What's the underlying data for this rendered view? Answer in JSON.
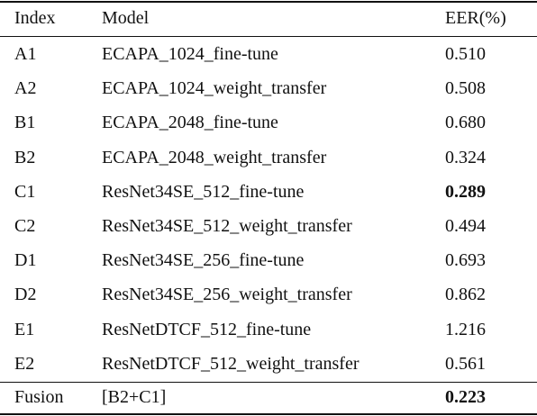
{
  "table": {
    "header": [
      "Index",
      "Model",
      "EER(%)"
    ],
    "rows": [
      [
        "A1",
        "ECAPA_1024_fine-tune",
        "0.510"
      ],
      [
        "A2",
        "ECAPA_1024_weight_transfer",
        "0.508"
      ],
      [
        "B1",
        "ECAPA_2048_fine-tune",
        "0.680"
      ],
      [
        "B2",
        "ECAPA_2048_weight_transfer",
        "0.324"
      ],
      [
        "C1",
        "ResNet34SE_512_fine-tune",
        "0.289"
      ],
      [
        "C2",
        "ResNet34SE_512_weight_transfer",
        "0.494"
      ],
      [
        "D1",
        "ResNet34SE_256_fine-tune",
        "0.693"
      ],
      [
        "D2",
        "ResNet34SE_256_weight_transfer",
        "0.862"
      ],
      [
        "E1",
        "ResNetDTCF_512_fine-tune",
        "1.216"
      ],
      [
        "E2",
        "ResNetDTCF_512_weight_transfer",
        "0.561"
      ]
    ],
    "footer": [
      "Fusion",
      "[B2+C1]",
      "0.223"
    ]
  }
}
